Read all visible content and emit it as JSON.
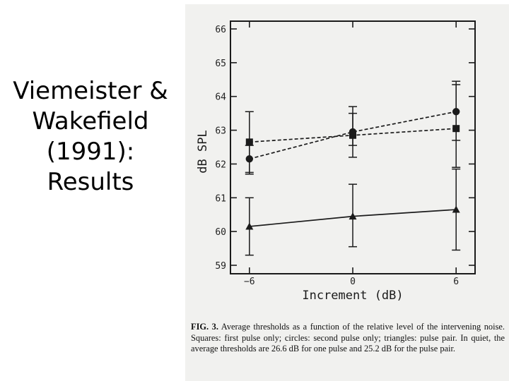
{
  "slide": {
    "title_lines": [
      "Viemeister &",
      "Wakefield",
      "(1991):",
      "Results"
    ]
  },
  "caption": {
    "label": "FIG. 3.",
    "text": "Average thresholds as a function of the relative level of the intervening noise. Squares: first pulse only; circles: second pulse only; triangles: pulse pair. In quiet, the average thresholds are 26.6 dB for one pulse and 25.2 dB for the pulse pair."
  },
  "chart_data": {
    "type": "line",
    "xlabel": "Increment (dB)",
    "ylabel": "dB SPL",
    "x": [
      -6,
      0,
      6
    ],
    "x_ticks": [
      "−6",
      "0",
      "6"
    ],
    "ylim": [
      59,
      66
    ],
    "y_ticks": [
      "59",
      "60",
      "61",
      "62",
      "63",
      "64",
      "65",
      "66"
    ],
    "grid": false,
    "series": [
      {
        "marker": "square",
        "line_style": "dashed",
        "values": [
          62.65,
          62.85,
          63.05
        ],
        "error_high": [
          63.55,
          63.5,
          64.35
        ],
        "error_low": [
          61.75,
          62.2,
          61.9
        ]
      },
      {
        "marker": "circle",
        "line_style": "dashed",
        "values": [
          62.15,
          62.95,
          63.55
        ],
        "error_high": [
          62.55,
          63.7,
          64.45
        ],
        "error_low": [
          61.7,
          62.55,
          62.7
        ]
      },
      {
        "marker": "triangle",
        "line_style": "solid",
        "values": [
          60.15,
          60.45,
          60.65
        ],
        "error_high": [
          61.0,
          61.4,
          61.85
        ],
        "error_low": [
          59.3,
          59.55,
          59.45
        ]
      }
    ]
  }
}
